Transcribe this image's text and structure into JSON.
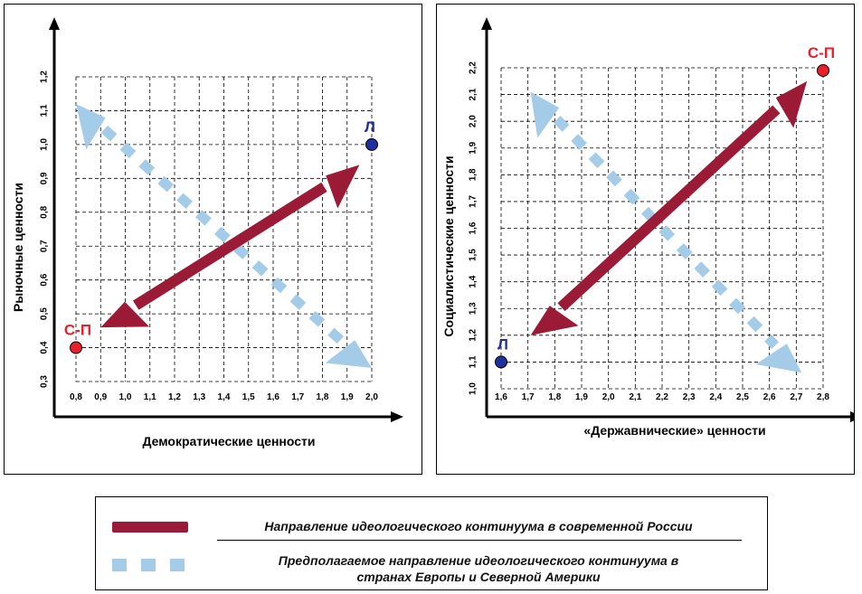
{
  "chart_data": [
    {
      "type": "scatter",
      "xlabel": "Демократические ценности",
      "ylabel": "Рыночные ценности",
      "x_ticks": [
        "0,8",
        "0,9",
        "1,0",
        "1,1",
        "1,2",
        "1,3",
        "1,4",
        "1,5",
        "1,6",
        "1,7",
        "1,8",
        "1,9",
        "2,0"
      ],
      "y_ticks": [
        "0,3",
        "0,4",
        "0,5",
        "0,6",
        "0,7",
        "0,8",
        "0,9",
        "1,0",
        "1,1",
        "1,2"
      ],
      "xlim": [
        0.8,
        2.0
      ],
      "ylim": [
        0.3,
        1.2
      ],
      "points": [
        {
          "label": "С-П",
          "x": 0.8,
          "y": 0.4,
          "color": "#e8202a",
          "label_color": "#e8202a"
        },
        {
          "label": "Л",
          "x": 2.0,
          "y": 1.0,
          "color": "#1f2f9e",
          "label_color": "#1f2f9e"
        }
      ],
      "arrows": [
        {
          "series": "russia",
          "from": [
            0.9,
            0.46
          ],
          "to": [
            1.95,
            0.94
          ]
        },
        {
          "series": "west",
          "from": [
            0.8,
            1.12
          ],
          "to": [
            2.0,
            0.34
          ]
        }
      ]
    },
    {
      "type": "scatter",
      "xlabel": "«Державнические» ценности",
      "ylabel": "Социалистические ценности",
      "x_ticks": [
        "1,6",
        "1,7",
        "1,8",
        "1,9",
        "2,0",
        "2,1",
        "2,2",
        "2,3",
        "2,4",
        "2,5",
        "2,6",
        "2,7",
        "2,8"
      ],
      "y_ticks": [
        "1,0",
        "1,1",
        "1,2",
        "1,3",
        "1,4",
        "1,5",
        "1,6",
        "1,7",
        "1,8",
        "1,9",
        "2,0",
        "2,1",
        "2,2"
      ],
      "xlim": [
        1.6,
        2.8
      ],
      "ylim": [
        1.0,
        2.2
      ],
      "points": [
        {
          "label": "С-П",
          "x": 2.8,
          "y": 2.19,
          "color": "#e8202a",
          "label_color": "#e8202a"
        },
        {
          "label": "Л",
          "x": 1.6,
          "y": 1.1,
          "color": "#1f2f9e",
          "label_color": "#1f2f9e"
        }
      ],
      "arrows": [
        {
          "series": "russia",
          "from": [
            1.71,
            1.2
          ],
          "to": [
            2.74,
            2.15
          ]
        },
        {
          "series": "west",
          "from": [
            1.71,
            2.11
          ],
          "to": [
            2.72,
            1.06
          ]
        }
      ]
    }
  ],
  "legend": {
    "russia": "Направление идеологического континуума в современной России",
    "west": "Предполагаемое направление идеологического континуума в странах Европы и Северной Америки",
    "russia_color": "#9b1b36",
    "west_color": "#a4cbe8"
  }
}
